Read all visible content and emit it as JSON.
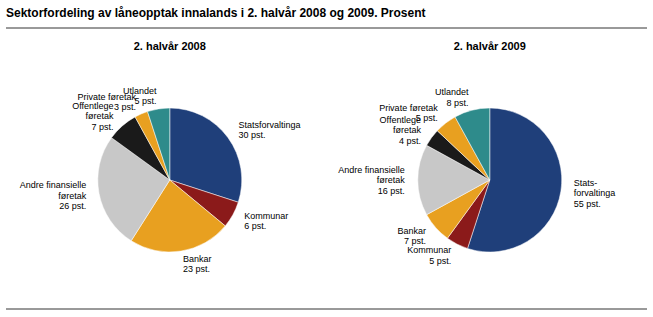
{
  "title": "Sektorfordeling av låneopptak innalands i 2. halvår 2008 og 2009. Prosent",
  "chart_data": [
    {
      "type": "pie",
      "title": "2. halvår 2008",
      "categories": [
        "Statsforvaltinga",
        "Kommunar",
        "Bankar",
        "Andre finansielle\nføretak",
        "Offentlege\nføretak",
        "Private føretak",
        "Utlandet"
      ],
      "values": [
        30,
        6,
        23,
        26,
        7,
        3,
        5
      ],
      "value_labels": [
        "30 pst.",
        "6 pst.",
        "23 pst.",
        "26 pst.",
        "7 pst.",
        "3 pst.",
        "5 pst."
      ],
      "colors": [
        "#1f3f7a",
        "#8b1a1a",
        "#e8a020",
        "#c8c8c8",
        "#1a1a1a",
        "#e8a020",
        "#2e8b8b"
      ]
    },
    {
      "type": "pie",
      "title": "2. halvår 2009",
      "categories": [
        "Stats-\nforvaltinga",
        "Kommunar",
        "Bankar",
        "Andre finansielle\nføretak",
        "Offentlege\nføretak",
        "Private føretak",
        "Utlandet"
      ],
      "values": [
        55,
        5,
        7,
        16,
        4,
        5,
        8
      ],
      "value_labels": [
        "55 pst.",
        "5 pst.",
        "7 pst.",
        "16 pst.",
        "4 pst.",
        "5 pst.",
        "8 pst."
      ],
      "colors": [
        "#1f3f7a",
        "#8b1a1a",
        "#e8a020",
        "#c8c8c8",
        "#1a1a1a",
        "#e8a020",
        "#2e8b8b"
      ]
    }
  ]
}
